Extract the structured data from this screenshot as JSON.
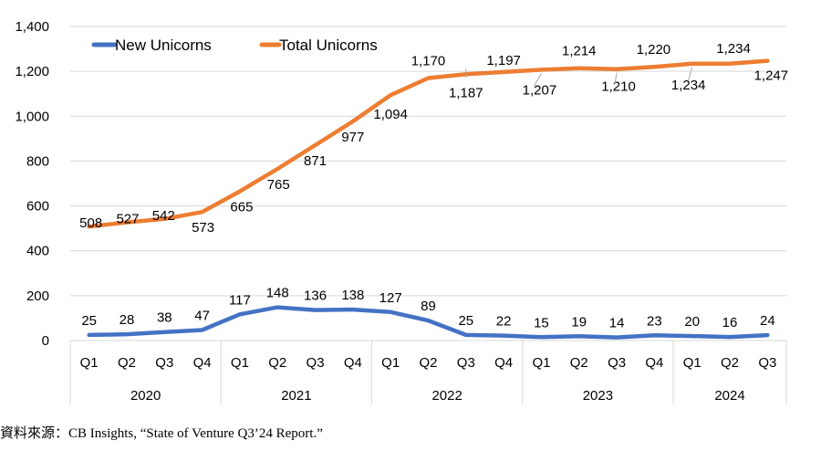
{
  "chart_data": {
    "type": "line",
    "title": "",
    "xlabel": "",
    "ylabel": "",
    "ylim": [
      0,
      1400
    ],
    "yticks": [
      "0",
      "200",
      "400",
      "600",
      "800",
      "1,000",
      "1,200",
      "1,400"
    ],
    "grid": "horizontal",
    "legend_position": "top-left",
    "quarters": [
      "Q1",
      "Q2",
      "Q3",
      "Q4",
      "Q1",
      "Q2",
      "Q3",
      "Q4",
      "Q1",
      "Q2",
      "Q3",
      "Q4",
      "Q1",
      "Q2",
      "Q3",
      "Q4",
      "Q1",
      "Q2",
      "Q3"
    ],
    "years": [
      {
        "label": "2020",
        "quarters": 4
      },
      {
        "label": "2021",
        "quarters": 4
      },
      {
        "label": "2022",
        "quarters": 4
      },
      {
        "label": "2023",
        "quarters": 4
      },
      {
        "label": "2024",
        "quarters": 3
      }
    ],
    "series": [
      {
        "name": "New Unicorns",
        "color": "#4472C4",
        "values": [
          25,
          28,
          38,
          47,
          117,
          148,
          136,
          138,
          127,
          89,
          25,
          22,
          15,
          19,
          14,
          23,
          20,
          16,
          24
        ],
        "labels": [
          "25",
          "28",
          "38",
          "47",
          "117",
          "148",
          "136",
          "138",
          "127",
          "89",
          "25",
          "22",
          "15",
          "19",
          "14",
          "23",
          "20",
          "16",
          "24"
        ]
      },
      {
        "name": "Total Unicorns",
        "color": "#ED7D31",
        "values": [
          508,
          527,
          542,
          573,
          665,
          765,
          871,
          977,
          1094,
          1170,
          1187,
          1197,
          1207,
          1214,
          1210,
          1220,
          1234,
          1234,
          1247
        ],
        "labels": [
          "508",
          "527",
          "542",
          "573",
          "665",
          "765",
          "871",
          "977",
          "1,094",
          "1,170",
          "1,187",
          "1,197",
          "1,207",
          "1,214",
          "1,210",
          "1,220",
          "1,234",
          "1,234",
          "1,247"
        ]
      }
    ]
  },
  "source": "資料來源：CB Insights, “State of Venture Q3’24 Report.”"
}
